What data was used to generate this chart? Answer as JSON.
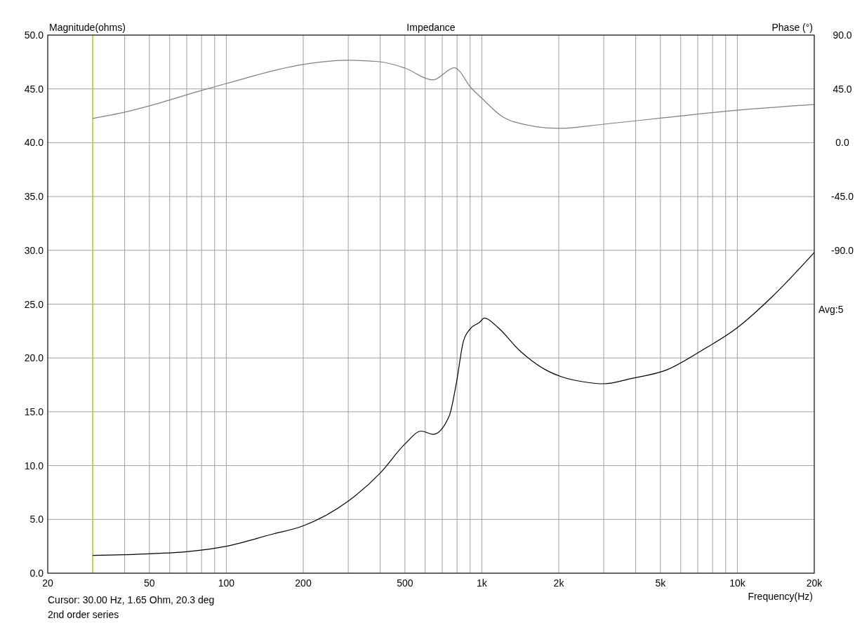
{
  "chart_data": {
    "type": "line",
    "title": "Impedance",
    "xlabel": "Frequency(Hz)",
    "ylabel": "Magnitude(ohms)",
    "y2label": "Phase (°)",
    "annotations": [
      "Cursor: 30.00 Hz, 1.65 Ohm, 20.3 deg",
      "2nd order series",
      "Avg:5"
    ],
    "log": "x",
    "grid": true,
    "marker": "none",
    "line_style": "solid",
    "xlim": [
      20,
      20000
    ],
    "xticks": [
      20,
      {
        "value": 30,
        "label": null
      },
      {
        "value": 40,
        "label": null
      },
      50,
      {
        "value": 60,
        "label": null
      },
      {
        "value": 70,
        "label": null
      },
      {
        "value": 80,
        "label": null
      },
      {
        "value": 90,
        "label": null
      },
      100,
      200,
      {
        "value": 300,
        "label": null
      },
      {
        "value": 400,
        "label": null
      },
      500,
      {
        "value": 600,
        "label": null
      },
      {
        "value": 700,
        "label": null
      },
      {
        "value": 800,
        "label": null
      },
      {
        "value": 900,
        "label": null
      },
      {
        "value": 1000,
        "label": "1k"
      },
      {
        "value": 2000,
        "label": "2k"
      },
      {
        "value": 3000,
        "label": null
      },
      {
        "value": 4000,
        "label": null
      },
      {
        "value": 5000,
        "label": "5k"
      },
      {
        "value": 6000,
        "label": null
      },
      {
        "value": 7000,
        "label": null
      },
      {
        "value": 8000,
        "label": null
      },
      {
        "value": 9000,
        "label": null
      },
      {
        "value": 10000,
        "label": "10k"
      },
      {
        "value": 20000,
        "label": "20k"
      }
    ],
    "ylim": [
      0,
      50
    ],
    "yticks": [
      {
        "value": 0,
        "label": "0.0"
      },
      {
        "value": 5,
        "label": "5.0"
      },
      {
        "value": 10,
        "label": "10.0"
      },
      {
        "value": 15,
        "label": "15.0"
      },
      {
        "value": 20,
        "label": "20.0"
      },
      {
        "value": 25,
        "label": "25.0"
      },
      {
        "value": 30,
        "label": "30.0"
      },
      {
        "value": 35,
        "label": "35.0"
      },
      {
        "value": 40,
        "label": "40.0"
      },
      {
        "value": 45,
        "label": "45.0"
      },
      {
        "value": 50,
        "label": "50.0"
      }
    ],
    "y2lim": [
      -360,
      90
    ],
    "y2ticks": [
      {
        "value": 90,
        "label": "90.0"
      },
      {
        "value": 45,
        "label": "45.0"
      },
      {
        "value": 0,
        "label": "0.0"
      },
      {
        "value": -45,
        "label": "-45.0"
      },
      {
        "value": -90,
        "label": "-90.0"
      }
    ],
    "ref_lines": [
      {
        "axis": "x",
        "value": 30,
        "color": "#c8c800"
      }
    ],
    "series": [
      {
        "color": "#000000",
        "x": [
          30,
          50,
          70,
          100,
          150,
          200,
          300,
          400,
          500,
          579,
          645,
          745,
          794,
          846,
          900,
          979,
          1023,
          1160,
          1404,
          1808,
          2050,
          2640,
          3000,
          3860,
          5300,
          7260,
          9980,
          13700,
          20000
        ],
        "values": [
          1.65,
          1.8,
          2.0,
          2.5,
          3.6,
          4.4,
          6.7,
          9.3,
          12.0,
          13.2,
          12.9,
          14.6,
          17.6,
          21.5,
          22.7,
          23.3,
          23.7,
          22.8,
          20.7,
          18.8,
          18.25,
          17.7,
          17.6,
          18.1,
          18.9,
          20.7,
          22.8,
          25.7,
          29.8
        ]
      },
      {
        "color": "#808080",
        "axis": "y2",
        "x": [
          30,
          40,
          50,
          80,
          100,
          200,
          300,
          400,
          500,
          644,
          780,
          912,
          1000,
          1190,
          1342,
          2000,
          3000,
          5130,
          10100,
          20000
        ],
        "values": [
          20.3,
          25.5,
          30.8,
          43.7,
          49.5,
          65.4,
          68.9,
          67.7,
          62.4,
          52.5,
          62.7,
          45.4,
          37.2,
          22.6,
          17.3,
          12.0,
          15.5,
          20.8,
          27.3,
          32
        ]
      }
    ]
  }
}
